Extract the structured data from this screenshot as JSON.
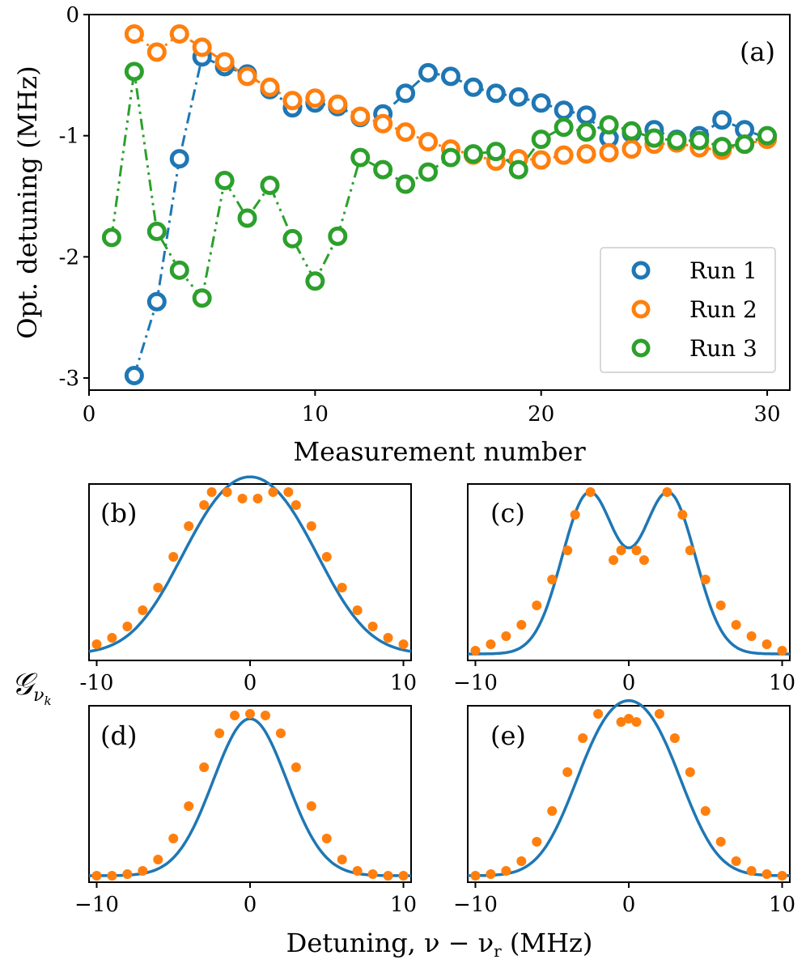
{
  "colors": {
    "run1": "#1f77b4",
    "run2": "#ff7f0e",
    "run3": "#2ca02c",
    "axis": "#000000"
  },
  "chart_data": [
    {
      "id": "a",
      "type": "line",
      "panel_label": "(a)",
      "xlabel": "Measurement number",
      "ylabel": "Opt. detuning (MHz)",
      "xlim": [
        0,
        31
      ],
      "ylim": [
        -3.1,
        0
      ],
      "xticks": [
        0,
        10,
        20,
        30
      ],
      "xtick_labels": [
        "0",
        "10",
        "20",
        "30"
      ],
      "yticks": [
        0,
        -1,
        -2,
        -3
      ],
      "ytick_labels": [
        "0",
        "-1",
        "-2",
        "-3"
      ],
      "legend_position": "lower-right",
      "series": [
        {
          "name": "Run 1",
          "x": [
            2,
            3,
            4,
            5,
            6,
            7,
            8,
            9,
            10,
            11,
            12,
            13,
            14,
            15,
            16,
            17,
            18,
            19,
            20,
            21,
            22,
            23,
            24,
            25,
            26,
            27,
            28,
            29,
            30
          ],
          "y": [
            -2.98,
            -2.37,
            -1.19,
            -0.35,
            -0.43,
            -0.49,
            -0.62,
            -0.77,
            -0.73,
            -0.76,
            -0.85,
            -0.82,
            -0.65,
            -0.48,
            -0.51,
            -0.6,
            -0.65,
            -0.68,
            -0.73,
            -0.79,
            -0.83,
            -1.02,
            -0.98,
            -0.95,
            -1.03,
            -1.0,
            -0.87,
            -0.95,
            -1.02
          ]
        },
        {
          "name": "Run 2",
          "x": [
            2,
            3,
            4,
            5,
            6,
            7,
            8,
            9,
            10,
            11,
            12,
            13,
            14,
            15,
            16,
            17,
            18,
            19,
            20,
            21,
            22,
            23,
            24,
            25,
            26,
            27,
            28,
            29,
            30
          ],
          "y": [
            -0.16,
            -0.31,
            -0.16,
            -0.27,
            -0.39,
            -0.51,
            -0.6,
            -0.71,
            -0.69,
            -0.74,
            -0.84,
            -0.9,
            -0.97,
            -1.05,
            -1.11,
            -1.16,
            -1.21,
            -1.19,
            -1.2,
            -1.16,
            -1.15,
            -1.14,
            -1.11,
            -1.07,
            -1.06,
            -1.1,
            -1.12,
            -1.07,
            -1.03
          ]
        },
        {
          "name": "Run 3",
          "x": [
            1,
            2,
            3,
            4,
            5,
            6,
            7,
            8,
            9,
            10,
            11,
            12,
            13,
            14,
            15,
            16,
            17,
            18,
            19,
            20,
            21,
            22,
            23,
            24,
            25,
            26,
            27,
            28,
            29,
            30
          ],
          "y": [
            -1.84,
            -0.47,
            -1.79,
            -2.11,
            -2.34,
            -1.37,
            -1.68,
            -1.41,
            -1.85,
            -2.2,
            -1.83,
            -1.18,
            -1.28,
            -1.4,
            -1.3,
            -1.18,
            -1.15,
            -1.13,
            -1.28,
            -1.03,
            -0.93,
            -0.97,
            -0.91,
            -0.96,
            -1.02,
            -1.04,
            -1.04,
            -1.09,
            -1.07,
            -1.0
          ]
        }
      ]
    },
    {
      "id": "b",
      "type": "line",
      "panel_label": "(b)",
      "xlim": [
        -10.5,
        10.5
      ],
      "ylim": [
        0,
        1.02
      ],
      "xticks": [
        -10,
        0,
        10
      ],
      "xtick_labels": [
        "-10",
        "0",
        "10"
      ],
      "series": [
        {
          "name": "fit",
          "style": "line",
          "model": "double-gaussian",
          "center_offset": 2.2,
          "sigma": 3.0,
          "amplitude": 0.96,
          "baseline": 0.0
        },
        {
          "name": "points",
          "style": "markers",
          "x": [
            -10,
            -9,
            -8,
            -7,
            -6,
            -5,
            -4,
            -3,
            -2.5,
            -1.5,
            -0.5,
            0.5,
            1.5,
            2.5,
            3,
            4,
            5,
            6,
            7,
            8,
            9,
            10
          ],
          "y": [
            0.06,
            0.1,
            0.17,
            0.27,
            0.41,
            0.6,
            0.79,
            0.92,
            1.0,
            1.0,
            0.96,
            0.96,
            1.0,
            1.0,
            0.92,
            0.79,
            0.6,
            0.41,
            0.27,
            0.17,
            0.1,
            0.06
          ]
        }
      ]
    },
    {
      "id": "c",
      "type": "line",
      "panel_label": "(c)",
      "xlim": [
        -10.5,
        10.5
      ],
      "ylim": [
        0,
        1.02
      ],
      "xticks": [
        -10,
        0,
        10
      ],
      "xtick_labels": [
        "−10",
        "0",
        "10"
      ],
      "series": [
        {
          "name": "fit",
          "style": "line",
          "model": "double-gaussian",
          "center_offset": 2.6,
          "sigma": 1.75,
          "amplitude": 1.0,
          "baseline": 0.0
        },
        {
          "name": "points",
          "style": "markers",
          "x": [
            -10,
            -9,
            -8,
            -7,
            -6,
            -5,
            -4,
            -3.5,
            -2.5,
            -1,
            -0.5,
            0.5,
            1,
            2.5,
            3.5,
            4,
            5,
            6,
            7,
            8,
            9,
            10
          ],
          "y": [
            0.02,
            0.06,
            0.11,
            0.18,
            0.3,
            0.46,
            0.64,
            0.86,
            1.0,
            0.58,
            0.64,
            0.64,
            0.58,
            1.0,
            0.86,
            0.64,
            0.46,
            0.3,
            0.18,
            0.11,
            0.06,
            0.02
          ]
        }
      ]
    },
    {
      "id": "d",
      "type": "line",
      "panel_label": "(d)",
      "xlim": [
        -10.5,
        10.5
      ],
      "ylim": [
        0,
        1.02
      ],
      "xticks": [
        -10,
        0,
        10
      ],
      "xtick_labels": [
        "−10",
        "0",
        "10"
      ],
      "series": [
        {
          "name": "fit",
          "style": "line",
          "model": "gaussian",
          "center_offset": 0,
          "sigma": 2.4,
          "amplitude": 0.97,
          "baseline": 0.0
        },
        {
          "name": "points",
          "style": "markers",
          "x": [
            -10,
            -9,
            -8,
            -7,
            -6,
            -5,
            -4,
            -3,
            -2,
            -1,
            0,
            1,
            2,
            3,
            4,
            5,
            6,
            7,
            8,
            9,
            10
          ],
          "y": [
            0.0,
            0.0,
            0.01,
            0.03,
            0.1,
            0.23,
            0.43,
            0.67,
            0.88,
            0.99,
            1.0,
            0.99,
            0.88,
            0.67,
            0.43,
            0.23,
            0.1,
            0.03,
            0.01,
            0.0,
            0.0
          ]
        }
      ]
    },
    {
      "id": "e",
      "type": "line",
      "panel_label": "(e)",
      "xlim": [
        -10.5,
        10.5
      ],
      "ylim": [
        0,
        1.02
      ],
      "xticks": [
        -10,
        0,
        10
      ],
      "xtick_labels": [
        "−10",
        "0",
        "10"
      ],
      "series": [
        {
          "name": "fit",
          "style": "line",
          "model": "double-gaussian",
          "center_offset": 1.7,
          "sigma": 2.2,
          "amplitude": 0.95,
          "baseline": 0.0
        },
        {
          "name": "points",
          "style": "markers",
          "x": [
            -10,
            -9,
            -8,
            -7,
            -6,
            -5,
            -4,
            -3,
            -2,
            -0.5,
            0,
            0.5,
            2,
            3,
            4,
            5,
            6,
            7,
            8,
            9,
            10
          ],
          "y": [
            0.0,
            0.01,
            0.03,
            0.09,
            0.21,
            0.4,
            0.64,
            0.85,
            1.0,
            0.95,
            0.97,
            0.95,
            1.0,
            0.85,
            0.64,
            0.4,
            0.21,
            0.09,
            0.03,
            0.01,
            0.0
          ]
        }
      ]
    }
  ],
  "shared_labels": {
    "lower_xlabel": "Detuning, ν − ν",
    "lower_xlabel_sub": "r",
    "lower_xlabel_units": " (MHz)",
    "lower_ylabel": "𝒢",
    "lower_ylabel_sub": "ν",
    "lower_ylabel_subsub": "k"
  }
}
